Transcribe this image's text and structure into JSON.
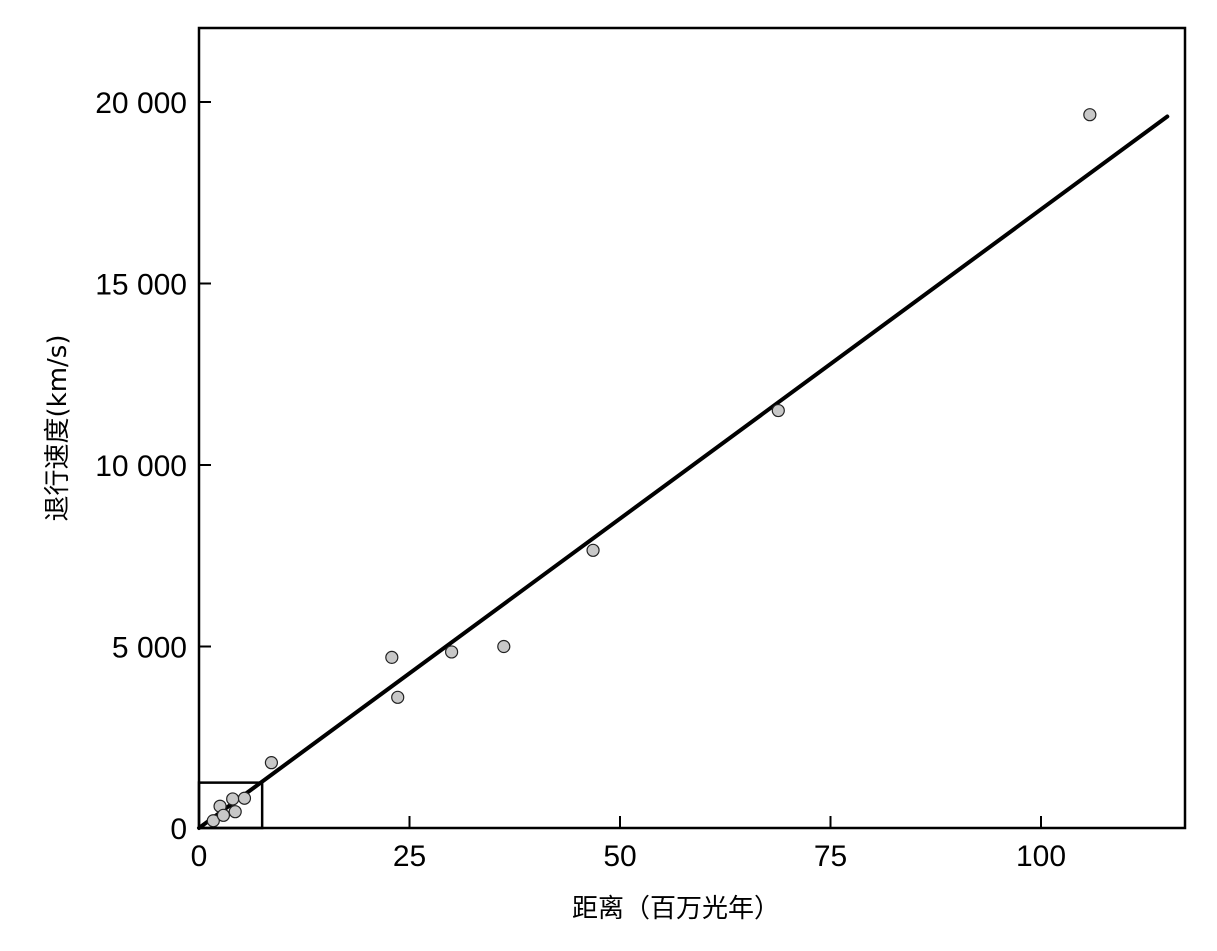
{
  "chart_data": {
    "type": "scatter",
    "xlabel": "距离（百万光年）",
    "ylabel": "退行速度(km/s)",
    "xlim": [
      0,
      117
    ],
    "ylim": [
      0,
      22000
    ],
    "x_ticks": [
      {
        "value": 0,
        "label": "0"
      },
      {
        "value": 25,
        "label": "25"
      },
      {
        "value": 50,
        "label": "50"
      },
      {
        "value": 75,
        "label": "75"
      },
      {
        "value": 100,
        "label": "100"
      }
    ],
    "y_ticks": [
      {
        "value": 0,
        "label": "0"
      },
      {
        "value": 5000,
        "label": "5 000"
      },
      {
        "value": 10000,
        "label": "10 000"
      },
      {
        "value": 15000,
        "label": "15 000"
      },
      {
        "value": 20000,
        "label": "20 000"
      }
    ],
    "grid": false,
    "legend": "none",
    "points": [
      {
        "x": 1.7,
        "y": 200
      },
      {
        "x": 2.5,
        "y": 600
      },
      {
        "x": 2.9,
        "y": 350
      },
      {
        "x": 4.0,
        "y": 800
      },
      {
        "x": 4.3,
        "y": 450
      },
      {
        "x": 5.4,
        "y": 820
      },
      {
        "x": 8.6,
        "y": 1800
      },
      {
        "x": 22.9,
        "y": 4700
      },
      {
        "x": 23.6,
        "y": 3600
      },
      {
        "x": 30.0,
        "y": 4850
      },
      {
        "x": 36.2,
        "y": 5000
      },
      {
        "x": 46.8,
        "y": 7650
      },
      {
        "x": 68.8,
        "y": 11500
      },
      {
        "x": 105.8,
        "y": 19650
      }
    ],
    "fit_line": {
      "x": [
        0,
        115
      ],
      "y": [
        0,
        19600
      ]
    },
    "inset_box": {
      "x": [
        0,
        7.5
      ],
      "y": [
        0,
        1250
      ]
    },
    "colors": {
      "point_fill": "#c8c8c8",
      "point_stroke": "#222222",
      "line": "#000000",
      "frame": "#000000"
    }
  }
}
